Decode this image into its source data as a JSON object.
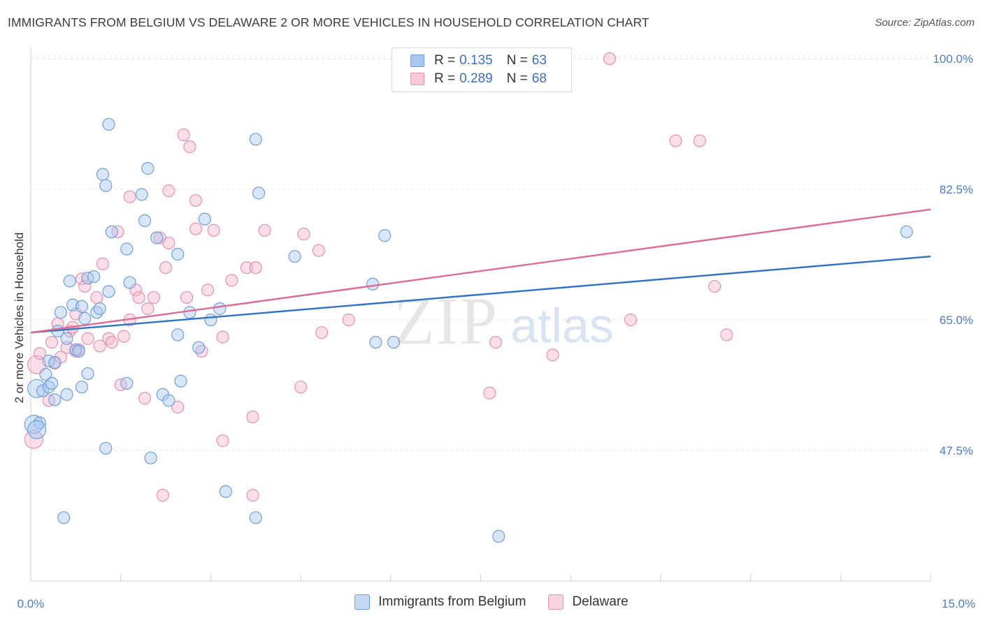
{
  "title": "IMMIGRANTS FROM BELGIUM VS DELAWARE 2 OR MORE VEHICLES IN HOUSEHOLD CORRELATION CHART",
  "source": "Source: ZipAtlas.com",
  "watermark": {
    "zip": "ZIP",
    "atlas": "atlas"
  },
  "colors": {
    "blue_fill": "#a9c8ef",
    "blue_stroke": "#6f9fdb",
    "blue_line": "#2e72c9",
    "pink_fill": "#f5b6cb",
    "pink_stroke": "#e891b0",
    "pink_line": "#e06a95",
    "tick_text": "#4a7cc7"
  },
  "legend": {
    "rows": [
      {
        "r_label": "R =",
        "r_value": "0.135",
        "n_label": "N =",
        "n_value": "63"
      },
      {
        "r_label": "R =",
        "r_value": "0.289",
        "n_label": "N =",
        "n_value": "68"
      }
    ]
  },
  "bottom_legend": [
    "Immigrants from Belgium",
    "Delaware"
  ],
  "chart_data": {
    "type": "scatter",
    "title": "IMMIGRANTS FROM BELGIUM VS DELAWARE 2 OR MORE VEHICLES IN HOUSEHOLD CORRELATION CHART",
    "xlabel": "",
    "ylabel": "2 or more Vehicles in Household",
    "xlim": [
      0,
      15
    ],
    "ylim": [
      30,
      101.5
    ],
    "x_tick_labels": [
      "0.0%",
      "15.0%"
    ],
    "y_ticks": [
      47.5,
      65.0,
      82.5,
      100.0
    ],
    "y_tick_labels": [
      "47.5%",
      "65.0%",
      "82.5%",
      "100.0%"
    ],
    "grid": true,
    "legend_position": "top-center",
    "series": [
      {
        "name": "Immigrants from Belgium",
        "r": 0.135,
        "n": 63,
        "trend": {
          "x": [
            0,
            15
          ],
          "y": [
            63.3,
            73.5
          ]
        },
        "points": [
          [
            0.05,
            51.0
          ],
          [
            0.1,
            55.8
          ],
          [
            0.15,
            51.2
          ],
          [
            0.2,
            55.5
          ],
          [
            0.25,
            57.7
          ],
          [
            0.3,
            56.0
          ],
          [
            0.3,
            59.5
          ],
          [
            0.35,
            56.5
          ],
          [
            0.4,
            54.3
          ],
          [
            0.4,
            59.3
          ],
          [
            0.45,
            63.5
          ],
          [
            0.5,
            66.0
          ],
          [
            0.55,
            38.5
          ],
          [
            0.6,
            55.0
          ],
          [
            0.6,
            62.5
          ],
          [
            0.65,
            70.2
          ],
          [
            0.7,
            67.0
          ],
          [
            0.75,
            61.0
          ],
          [
            0.8,
            60.8
          ],
          [
            0.85,
            56.0
          ],
          [
            0.85,
            66.8
          ],
          [
            0.9,
            65.2
          ],
          [
            0.95,
            57.8
          ],
          [
            0.95,
            70.6
          ],
          [
            1.05,
            70.8
          ],
          [
            1.1,
            66.0
          ],
          [
            1.15,
            66.5
          ],
          [
            1.2,
            84.5
          ],
          [
            1.25,
            47.8
          ],
          [
            1.25,
            83.0
          ],
          [
            1.3,
            68.8
          ],
          [
            1.3,
            91.2
          ],
          [
            1.35,
            76.8
          ],
          [
            1.6,
            56.5
          ],
          [
            1.6,
            74.5
          ],
          [
            1.65,
            70.0
          ],
          [
            1.85,
            81.8
          ],
          [
            1.9,
            78.3
          ],
          [
            1.95,
            85.3
          ],
          [
            2.0,
            46.5
          ],
          [
            2.1,
            76.0
          ],
          [
            2.2,
            55.0
          ],
          [
            2.3,
            54.2
          ],
          [
            2.45,
            63.0
          ],
          [
            2.45,
            73.8
          ],
          [
            2.5,
            56.8
          ],
          [
            2.65,
            66.0
          ],
          [
            2.8,
            61.3
          ],
          [
            2.9,
            78.5
          ],
          [
            3.0,
            65.0
          ],
          [
            3.15,
            66.5
          ],
          [
            3.25,
            42.0
          ],
          [
            3.75,
            89.2
          ],
          [
            3.75,
            38.5
          ],
          [
            3.8,
            82.0
          ],
          [
            4.4,
            73.5
          ],
          [
            5.7,
            69.8
          ],
          [
            5.75,
            62.0
          ],
          [
            5.9,
            76.3
          ],
          [
            6.05,
            62.0
          ],
          [
            7.8,
            36.0
          ],
          [
            14.6,
            76.8
          ],
          [
            0.1,
            50.3
          ]
        ]
      },
      {
        "name": "Delaware",
        "r": 0.289,
        "n": 68,
        "trend": {
          "x": [
            0,
            15
          ],
          "y": [
            63.3,
            79.8
          ]
        },
        "points": [
          [
            0.05,
            49.0
          ],
          [
            0.1,
            59.0
          ],
          [
            0.15,
            60.5
          ],
          [
            0.3,
            54.2
          ],
          [
            0.35,
            62.0
          ],
          [
            0.4,
            59.2
          ],
          [
            0.45,
            64.5
          ],
          [
            0.6,
            61.3
          ],
          [
            0.65,
            63.5
          ],
          [
            0.7,
            64.0
          ],
          [
            0.75,
            65.8
          ],
          [
            0.8,
            61.0
          ],
          [
            0.85,
            70.5
          ],
          [
            0.9,
            69.5
          ],
          [
            0.95,
            62.5
          ],
          [
            1.1,
            68.0
          ],
          [
            1.15,
            61.5
          ],
          [
            1.2,
            72.5
          ],
          [
            1.3,
            62.5
          ],
          [
            1.35,
            62.0
          ],
          [
            1.45,
            76.8
          ],
          [
            1.5,
            56.3
          ],
          [
            1.55,
            62.8
          ],
          [
            1.65,
            81.5
          ],
          [
            1.65,
            65.0
          ],
          [
            1.75,
            69.0
          ],
          [
            1.8,
            68.0
          ],
          [
            1.9,
            54.5
          ],
          [
            1.95,
            66.5
          ],
          [
            2.05,
            68.0
          ],
          [
            2.15,
            76.0
          ],
          [
            2.2,
            41.5
          ],
          [
            2.25,
            72.0
          ],
          [
            2.3,
            75.3
          ],
          [
            2.3,
            82.3
          ],
          [
            2.45,
            53.3
          ],
          [
            2.55,
            89.8
          ],
          [
            2.6,
            68.0
          ],
          [
            2.65,
            88.2
          ],
          [
            2.75,
            77.2
          ],
          [
            2.75,
            81.0
          ],
          [
            2.85,
            60.8
          ],
          [
            2.95,
            69.0
          ],
          [
            3.05,
            77.0
          ],
          [
            3.2,
            62.7
          ],
          [
            3.2,
            48.8
          ],
          [
            3.35,
            70.3
          ],
          [
            3.6,
            72.0
          ],
          [
            3.7,
            41.5
          ],
          [
            3.75,
            72.0
          ],
          [
            3.7,
            52.0
          ],
          [
            3.9,
            77.0
          ],
          [
            4.5,
            56.0
          ],
          [
            4.55,
            76.5
          ],
          [
            4.8,
            74.3
          ],
          [
            4.85,
            63.3
          ],
          [
            5.3,
            65.0
          ],
          [
            7.65,
            55.2
          ],
          [
            7.75,
            62.0
          ],
          [
            8.7,
            60.3
          ],
          [
            9.65,
            100.0
          ],
          [
            10.0,
            65.0
          ],
          [
            10.75,
            89.0
          ],
          [
            11.15,
            89.0
          ],
          [
            11.4,
            69.5
          ],
          [
            11.6,
            63.0
          ],
          [
            0.75,
            60.8
          ],
          [
            0.5,
            60.0
          ]
        ]
      }
    ]
  }
}
